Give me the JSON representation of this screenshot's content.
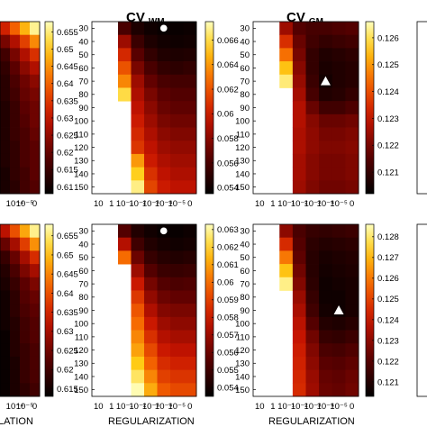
{
  "figure": {
    "titles": [
      {
        "main": "CV",
        "sub": "WM"
      },
      {
        "main": "CV",
        "sub": "GM"
      }
    ],
    "xlabel": "REGULARIZATION",
    "xlabel_cropped": "LATION"
  },
  "chart_data": [
    {
      "type": "heatmap",
      "id": "row1-left-partial",
      "title": "",
      "xlabel": "",
      "ylabel": "",
      "x_ticks_visible": [
        "10⁻⁴",
        "10⁻⁵",
        "0"
      ],
      "colorbar": {
        "ticks": [
          "0.655",
          "0.65",
          "0.645",
          "0.64",
          "0.635",
          "0.63",
          "0.625",
          "0.62",
          "0.615",
          "0.61"
        ],
        "range": [
          0.608,
          0.658
        ]
      },
      "values": [
        [
          0.632,
          0.64,
          0.648,
          0.656
        ],
        [
          0.622,
          0.628,
          0.636,
          0.644
        ],
        [
          0.616,
          0.622,
          0.628,
          0.634
        ],
        [
          0.614,
          0.619,
          0.624,
          0.628
        ],
        [
          0.613,
          0.617,
          0.621,
          0.624
        ],
        [
          0.613,
          0.616,
          0.62,
          0.622
        ],
        [
          0.612,
          0.615,
          0.619,
          0.621
        ],
        [
          0.612,
          0.615,
          0.618,
          0.621
        ],
        [
          0.612,
          0.615,
          0.617,
          0.62
        ],
        [
          0.612,
          0.614,
          0.617,
          0.619
        ],
        [
          0.612,
          0.614,
          0.617,
          0.619
        ],
        [
          0.611,
          0.614,
          0.616,
          0.619
        ],
        [
          0.611,
          0.613,
          0.616,
          0.618
        ]
      ]
    },
    {
      "type": "heatmap",
      "id": "row1-wm",
      "title": "CV WM",
      "xlabel": "",
      "ylabel": "",
      "x_ticks": [
        "10",
        "1",
        "10⁻¹",
        "10⁻²",
        "10⁻³",
        "10⁻⁴",
        "10⁻⁵",
        "0"
      ],
      "y_ticks": [
        "30",
        "40",
        "50",
        "60",
        "70",
        "80",
        "90",
        "100",
        "110",
        "120",
        "130",
        "140",
        "150"
      ],
      "colorbar": {
        "ticks": [
          "0.066",
          "0.064",
          "0.062",
          "0.06",
          "0.058",
          "0.056",
          "0.054"
        ],
        "range": [
          0.0535,
          0.0675
        ]
      },
      "marker": {
        "shape": "circle",
        "color": "#ffffff",
        "col": 5,
        "row": 0
      },
      "values": [
        [
          null,
          null,
          0.056,
          0.0545,
          0.054,
          0.0538,
          0.0538,
          0.0539
        ],
        [
          null,
          null,
          0.0585,
          0.0555,
          0.0545,
          0.0541,
          0.054,
          0.0541
        ],
        [
          null,
          null,
          0.0605,
          0.0565,
          0.0552,
          0.0546,
          0.0545,
          0.0546
        ],
        [
          null,
          null,
          0.062,
          0.0575,
          0.056,
          0.0552,
          0.055,
          0.0552
        ],
        [
          null,
          null,
          0.0635,
          0.0585,
          0.0568,
          0.056,
          0.0558,
          0.0558
        ],
        [
          null,
          null,
          0.066,
          0.059,
          0.0575,
          0.0566,
          0.0563,
          0.0563
        ],
        [
          null,
          null,
          null,
          0.0595,
          0.058,
          0.057,
          0.0567,
          0.0567
        ],
        [
          null,
          null,
          null,
          0.06,
          0.0585,
          0.0575,
          0.0572,
          0.0572
        ],
        [
          null,
          null,
          null,
          0.0605,
          0.059,
          0.058,
          0.0577,
          0.0577
        ],
        [
          null,
          null,
          null,
          0.061,
          0.0595,
          0.0585,
          0.0582,
          0.0582
        ],
        [
          null,
          null,
          null,
          0.064,
          0.06,
          0.059,
          0.0586,
          0.0586
        ],
        [
          null,
          null,
          null,
          0.0655,
          0.0608,
          0.0595,
          0.059,
          0.059
        ],
        [
          null,
          null,
          null,
          0.0668,
          0.0615,
          0.06,
          0.0595,
          0.0595
        ]
      ]
    },
    {
      "type": "heatmap",
      "id": "row1-gm",
      "title": "CV GM",
      "xlabel": "",
      "ylabel": "",
      "x_ticks": [
        "10",
        "1",
        "10⁻¹",
        "10⁻²",
        "10⁻³",
        "10⁻⁴",
        "10⁻⁵",
        "0"
      ],
      "y_ticks": [
        "30",
        "40",
        "50",
        "60",
        "70",
        "80",
        "90",
        "100",
        "110",
        "120",
        "130",
        "140",
        "150"
      ],
      "colorbar": {
        "ticks": [
          "0.126",
          "0.125",
          "0.124",
          "0.123",
          "0.122",
          "0.121"
        ],
        "range": [
          0.1202,
          0.1266
        ]
      },
      "marker": {
        "shape": "triangle",
        "color": "#ffffff",
        "col": 5,
        "row": 4
      },
      "values": [
        [
          null,
          null,
          0.1225,
          0.1215,
          0.1213,
          0.1213,
          0.1214,
          0.1215
        ],
        [
          null,
          null,
          0.1235,
          0.1218,
          0.1212,
          0.121,
          0.1211,
          0.1212
        ],
        [
          null,
          null,
          0.1245,
          0.122,
          0.121,
          0.1207,
          0.1208,
          0.1209
        ],
        [
          null,
          null,
          0.1255,
          0.1222,
          0.121,
          0.1206,
          0.1207,
          0.1208
        ],
        [
          null,
          null,
          0.1262,
          0.1224,
          0.1211,
          0.1205,
          0.1207,
          0.1208
        ],
        [
          null,
          null,
          null,
          0.1226,
          0.1213,
          0.1207,
          0.1208,
          0.121
        ],
        [
          null,
          null,
          null,
          0.1228,
          0.1218,
          0.1212,
          0.1212,
          0.1214
        ],
        [
          null,
          null,
          null,
          0.1228,
          0.1222,
          0.1218,
          0.1218,
          0.1219
        ],
        [
          null,
          null,
          null,
          0.1227,
          0.1223,
          0.122,
          0.122,
          0.1221
        ],
        [
          null,
          null,
          null,
          0.1227,
          0.1223,
          0.1221,
          0.1221,
          0.1222
        ],
        [
          null,
          null,
          null,
          0.1226,
          0.1222,
          0.122,
          0.122,
          0.1221
        ],
        [
          null,
          null,
          null,
          0.1226,
          0.1222,
          0.122,
          0.122,
          0.1221
        ],
        [
          null,
          null,
          null,
          0.1225,
          0.1221,
          0.1219,
          0.1219,
          0.122
        ]
      ]
    },
    {
      "type": "heatmap",
      "id": "row2-left-partial",
      "title": "",
      "xlabel": "LATION",
      "ylabel": "",
      "x_ticks_visible": [
        "10⁻⁴",
        "10⁻⁵",
        "0"
      ],
      "colorbar": {
        "ticks": [
          "0.655",
          "0.65",
          "0.645",
          "0.64",
          "0.635",
          "0.63",
          "0.625",
          "0.62",
          "0.615"
        ],
        "range": [
          0.613,
          0.658
        ]
      },
      "values": [
        [
          0.632,
          0.64,
          0.648,
          0.656
        ],
        [
          0.624,
          0.63,
          0.638,
          0.646
        ],
        [
          0.619,
          0.624,
          0.63,
          0.636
        ],
        [
          0.617,
          0.621,
          0.626,
          0.63
        ],
        [
          0.616,
          0.619,
          0.623,
          0.626
        ],
        [
          0.615,
          0.618,
          0.622,
          0.624
        ],
        [
          0.615,
          0.618,
          0.621,
          0.623
        ],
        [
          0.615,
          0.617,
          0.62,
          0.622
        ],
        [
          0.614,
          0.617,
          0.62,
          0.622
        ],
        [
          0.614,
          0.617,
          0.619,
          0.621
        ],
        [
          0.614,
          0.616,
          0.619,
          0.621
        ],
        [
          0.614,
          0.616,
          0.619,
          0.621
        ],
        [
          0.614,
          0.616,
          0.618,
          0.62
        ]
      ]
    },
    {
      "type": "heatmap",
      "id": "row2-wm",
      "title": "",
      "xlabel": "REGULARIZATION",
      "ylabel": "",
      "x_ticks": [
        "10",
        "1",
        "10⁻¹",
        "10⁻²",
        "10⁻³",
        "10⁻⁴",
        "10⁻⁵",
        "0"
      ],
      "y_ticks": [
        "30",
        "40",
        "50",
        "60",
        "70",
        "80",
        "90",
        "100",
        "110",
        "120",
        "130",
        "140",
        "150"
      ],
      "colorbar": {
        "ticks": [
          "0.063",
          "0.062",
          "0.061",
          "0.06",
          "0.059",
          "0.058",
          "0.057",
          "0.056",
          "0.055",
          "0.054"
        ],
        "range": [
          0.0535,
          0.0633
        ]
      },
      "marker": {
        "shape": "circle",
        "color": "#ffffff",
        "col": 5,
        "row": 0
      },
      "values": [
        [
          null,
          null,
          0.0555,
          0.0543,
          0.0539,
          0.0537,
          0.0537,
          0.0538
        ],
        [
          null,
          null,
          0.0575,
          0.055,
          0.0543,
          0.054,
          0.0539,
          0.054
        ],
        [
          null,
          null,
          0.06,
          0.056,
          0.0548,
          0.0544,
          0.0543,
          0.0544
        ],
        [
          null,
          null,
          null,
          0.057,
          0.0555,
          0.0549,
          0.0548,
          0.0549
        ],
        [
          null,
          null,
          null,
          0.058,
          0.0562,
          0.0555,
          0.0553,
          0.0554
        ],
        [
          null,
          null,
          null,
          0.0588,
          0.0568,
          0.056,
          0.0558,
          0.0558
        ],
        [
          null,
          null,
          null,
          0.0595,
          0.0574,
          0.0565,
          0.0563,
          0.0563
        ],
        [
          null,
          null,
          null,
          0.06,
          0.058,
          0.057,
          0.0567,
          0.0567
        ],
        [
          null,
          null,
          null,
          0.0605,
          0.0586,
          0.0575,
          0.0572,
          0.0572
        ],
        [
          null,
          null,
          null,
          0.061,
          0.0592,
          0.058,
          0.0577,
          0.0577
        ],
        [
          null,
          null,
          null,
          0.0618,
          0.0598,
          0.0585,
          0.0582,
          0.0582
        ],
        [
          null,
          null,
          null,
          0.0625,
          0.0605,
          0.059,
          0.0587,
          0.0587
        ],
        [
          null,
          null,
          null,
          0.0632,
          0.0612,
          0.0596,
          0.0592,
          0.0592
        ]
      ]
    },
    {
      "type": "heatmap",
      "id": "row2-gm",
      "title": "",
      "xlabel": "REGULARIZATION",
      "ylabel": "",
      "x_ticks": [
        "10",
        "1",
        "10⁻¹",
        "10⁻²",
        "10⁻³",
        "10⁻⁴",
        "10⁻⁵",
        "0"
      ],
      "y_ticks": [
        "30",
        "40",
        "50",
        "60",
        "70",
        "80",
        "90",
        "100",
        "110",
        "120",
        "130",
        "140",
        "150"
      ],
      "colorbar": {
        "ticks": [
          "0.128",
          "0.127",
          "0.126",
          "0.125",
          "0.124",
          "0.123",
          "0.122",
          "0.121"
        ],
        "range": [
          0.1203,
          0.1286
        ]
      },
      "marker": {
        "shape": "triangle",
        "color": "#ffffff",
        "col": 6,
        "row": 6
      },
      "values": [
        [
          null,
          null,
          0.123,
          0.1218,
          0.1214,
          0.1213,
          0.1214,
          0.1215
        ],
        [
          null,
          null,
          0.1245,
          0.122,
          0.1212,
          0.121,
          0.1211,
          0.1212
        ],
        [
          null,
          null,
          0.126,
          0.1222,
          0.1211,
          0.1208,
          0.1209,
          0.121
        ],
        [
          null,
          null,
          0.1272,
          0.1225,
          0.1211,
          0.1207,
          0.1208,
          0.1209
        ],
        [
          null,
          null,
          0.1282,
          0.1228,
          0.1212,
          0.1206,
          0.1207,
          0.1208
        ],
        [
          null,
          null,
          null,
          0.1232,
          0.1214,
          0.1206,
          0.1206,
          0.1208
        ],
        [
          null,
          null,
          null,
          0.1235,
          0.1216,
          0.1207,
          0.1206,
          0.1208
        ],
        [
          null,
          null,
          null,
          0.1238,
          0.122,
          0.121,
          0.1209,
          0.1211
        ],
        [
          null,
          null,
          null,
          0.124,
          0.1225,
          0.1214,
          0.1213,
          0.1215
        ],
        [
          null,
          null,
          null,
          0.1242,
          0.1228,
          0.1218,
          0.1217,
          0.1219
        ],
        [
          null,
          null,
          null,
          0.1243,
          0.123,
          0.1221,
          0.122,
          0.1222
        ],
        [
          null,
          null,
          null,
          0.1244,
          0.1232,
          0.1223,
          0.1222,
          0.1224
        ],
        [
          null,
          null,
          null,
          0.1245,
          0.1233,
          0.1224,
          0.1223,
          0.1225
        ]
      ]
    }
  ]
}
